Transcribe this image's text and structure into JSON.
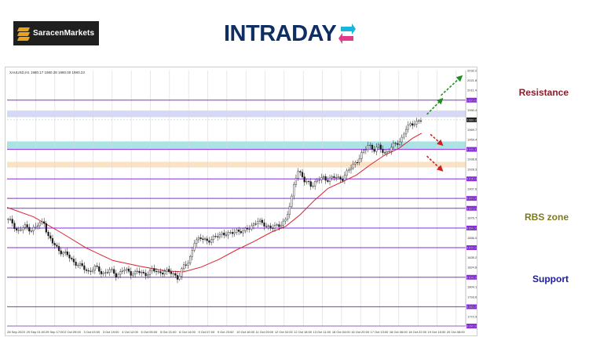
{
  "logos": {
    "saracen": "SaracenMarkets",
    "intraday": "INTRADAY"
  },
  "chart_data": {
    "type": "candlestick",
    "symbol_info": "XAUUSD,H1  1980.17 1980.28 1980.00 1980.23",
    "y_range": [
      1762.9,
      2032.2
    ],
    "current_price": "1980.23",
    "price_ticks": [
      "2032.20",
      "2021.80",
      "2011.40",
      "2001.00",
      "1990.40",
      "1980.23",
      "1969.70",
      "1959.40",
      "1949.10",
      "1938.80",
      "1928.30",
      "1918.00",
      "1907.60",
      "1897.40",
      "1887.00",
      "1876.70",
      "1866.20",
      "1856.00",
      "1845.50",
      "1835.20",
      "1824.80",
      "1814.30",
      "1804.10",
      "1793.60",
      "1783.20",
      "1772.90",
      "1762.90"
    ],
    "time_ticks": [
      "28 Sep 2023",
      "29 Sep 01:00",
      "29 Sep 17:00",
      "2 Oct 09:00",
      "3 Oct 03:00",
      "3 Oct 19:00",
      "4 Oct 12:00",
      "5 Oct 05:00",
      "5 Oct 21:00",
      "6 Oct 14:00",
      "9 Oct 07:00",
      "9 Oct 23:00",
      "10 Oct 16:00",
      "11 Oct 09:00",
      "12 Oct 02:00",
      "12 Oct 18:00",
      "13 Oct 11:00",
      "16 Oct 04:00",
      "16 Oct 20:00",
      "17 Oct 13:00",
      "18 Oct 06:00",
      "18 Oct 22:00",
      "19 Oct 15:00",
      "20 Oct 08:00"
    ],
    "levels": [
      {
        "price": 2001.0,
        "label": "2001.00"
      },
      {
        "price": 1949.1,
        "label": "1949.10"
      },
      {
        "price": 1918.0,
        "label": "1918.00"
      },
      {
        "price": 1897.4,
        "label": "1897.40"
      },
      {
        "price": 1887.0,
        "label": "1887.00"
      },
      {
        "price": 1866.2,
        "label": "1866.20"
      },
      {
        "price": 1845.5,
        "label": "1845.50"
      },
      {
        "price": 1814.3,
        "label": "1814.30"
      },
      {
        "price": 1783.2,
        "label": "1783.20"
      },
      {
        "price": 1762.9,
        "label": "1762.90"
      }
    ],
    "zones": [
      {
        "from": 1983.0,
        "to": 1990.0,
        "color": "#d6d9f5"
      },
      {
        "from": 1949.5,
        "to": 1957.5,
        "color": "#a9e3e3"
      },
      {
        "from": 1930.0,
        "to": 1936.0,
        "color": "#fbe2c4"
      }
    ],
    "price_path": [
      [
        0,
        1875
      ],
      [
        3,
        1872
      ],
      [
        6,
        1862
      ],
      [
        10,
        1868
      ],
      [
        14,
        1864
      ],
      [
        18,
        1870
      ],
      [
        21,
        1873
      ],
      [
        23,
        1858
      ],
      [
        26,
        1850
      ],
      [
        30,
        1842
      ],
      [
        34,
        1838
      ],
      [
        38,
        1830
      ],
      [
        42,
        1826
      ],
      [
        46,
        1820
      ],
      [
        50,
        1825
      ],
      [
        54,
        1818
      ],
      [
        58,
        1822
      ],
      [
        62,
        1816
      ],
      [
        66,
        1823
      ],
      [
        70,
        1818
      ],
      [
        74,
        1821
      ],
      [
        78,
        1816
      ],
      [
        82,
        1823
      ],
      [
        86,
        1818
      ],
      [
        90,
        1822
      ],
      [
        94,
        1817
      ],
      [
        97,
        1814
      ],
      [
        100,
        1826
      ],
      [
        103,
        1829
      ],
      [
        106,
        1852
      ],
      [
        110,
        1855
      ],
      [
        114,
        1853
      ],
      [
        118,
        1856
      ],
      [
        122,
        1861
      ],
      [
        126,
        1859
      ],
      [
        130,
        1864
      ],
      [
        134,
        1862
      ],
      [
        138,
        1868
      ],
      [
        142,
        1873
      ],
      [
        146,
        1870
      ],
      [
        150,
        1866
      ],
      [
        154,
        1869
      ],
      [
        158,
        1875
      ],
      [
        161,
        1893
      ],
      [
        163,
        1918
      ],
      [
        165,
        1926
      ],
      [
        167,
        1922
      ],
      [
        169,
        1913
      ],
      [
        171,
        1915
      ],
      [
        173,
        1911
      ],
      [
        176,
        1916
      ],
      [
        179,
        1920
      ],
      [
        182,
        1917
      ],
      [
        186,
        1920
      ],
      [
        190,
        1918
      ],
      [
        193,
        1925
      ],
      [
        196,
        1933
      ],
      [
        199,
        1938
      ],
      [
        202,
        1946
      ],
      [
        205,
        1955
      ],
      [
        208,
        1948
      ],
      [
        211,
        1952
      ],
      [
        214,
        1945
      ],
      [
        217,
        1949
      ],
      [
        220,
        1955
      ],
      [
        223,
        1958
      ],
      [
        226,
        1970
      ],
      [
        229,
        1976
      ],
      [
        232,
        1978
      ],
      [
        235,
        1980
      ]
    ],
    "ma_path": [
      [
        0,
        1888
      ],
      [
        15,
        1878
      ],
      [
        30,
        1862
      ],
      [
        45,
        1845
      ],
      [
        60,
        1832
      ],
      [
        75,
        1826
      ],
      [
        90,
        1821
      ],
      [
        100,
        1820
      ],
      [
        110,
        1825
      ],
      [
        120,
        1833
      ],
      [
        130,
        1843
      ],
      [
        140,
        1852
      ],
      [
        150,
        1862
      ],
      [
        158,
        1868
      ],
      [
        166,
        1880
      ],
      [
        174,
        1895
      ],
      [
        182,
        1908
      ],
      [
        190,
        1915
      ],
      [
        198,
        1922
      ],
      [
        206,
        1933
      ],
      [
        214,
        1943
      ],
      [
        222,
        1950
      ],
      [
        230,
        1961
      ],
      [
        235,
        1966
      ]
    ],
    "annotations": [
      {
        "text": "Resistance",
        "color": "#8a1c2c",
        "price": 2003.0
      },
      {
        "text": "RBS zone",
        "color": "#7d7a1e",
        "price": 1872.0
      },
      {
        "text": "Support",
        "color": "#1b1b9c",
        "price": 1806.5
      }
    ],
    "arrows": [
      {
        "color": "#1f8f1f",
        "from": [
          238,
          1986
        ],
        "to": [
          246,
          2001
        ]
      },
      {
        "color": "#1f8f1f",
        "from": [
          246,
          2006
        ],
        "to": [
          257,
          2025
        ]
      },
      {
        "color": "#d11f1f",
        "from": [
          240,
          1965
        ],
        "to": [
          246,
          1955
        ]
      },
      {
        "color": "#d11f1f",
        "from": [
          238,
          1942
        ],
        "to": [
          246,
          1928
        ]
      }
    ]
  }
}
